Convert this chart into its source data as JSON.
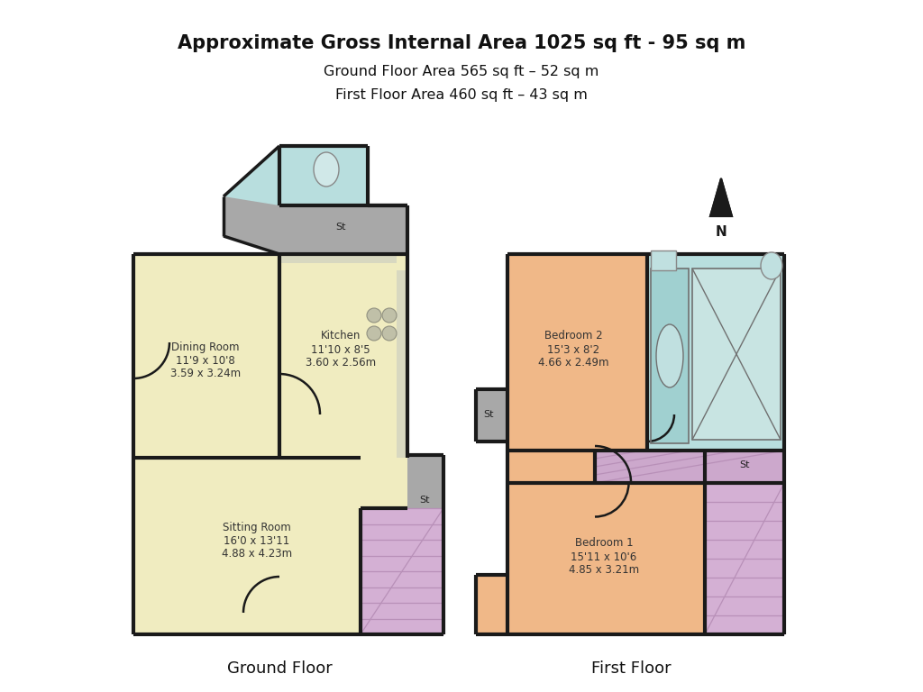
{
  "title_line1": "Approximate Gross Internal Area 1025 sq ft - 95 sq m",
  "title_line2": "Ground Floor Area 565 sq ft – 52 sq m",
  "title_line3": "First Floor Area 460 sq ft – 43 sq m",
  "label_ground": "Ground Floor",
  "label_first": "First Floor",
  "wall_color": "#1a1a1a",
  "room_yellow": "#f0ecc0",
  "room_blue": "#b8dede",
  "room_peach": "#f0b888",
  "room_purple": "#cca8cc",
  "room_gray": "#a8a8a8",
  "stair_purple": "#d4b0d4",
  "stair_line_color": "#b890b8"
}
